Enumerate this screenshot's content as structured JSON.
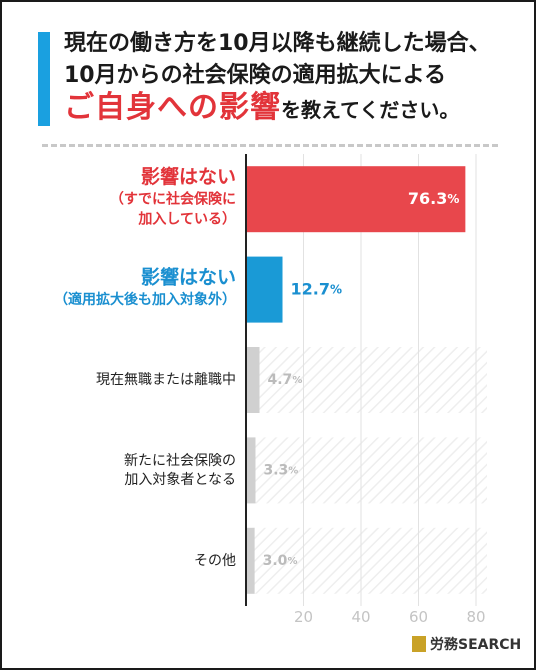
{
  "title": {
    "line1": "現在の働き方を10月以降も継続した場合、",
    "line2": "10月からの社会保険の適用拡大による",
    "line3_accent": "ご自身への影響",
    "line3_tail": "を教えてください。"
  },
  "chart_data": {
    "type": "bar",
    "orientation": "horizontal",
    "categories": [
      [
        "影響はない",
        "（すでに社会保険に",
        "加入している）"
      ],
      [
        "影響はない",
        "（適用拡大後も加入対象外）"
      ],
      [
        "現在無職または離職中"
      ],
      [
        "新たに社会保険の",
        "加入対象者となる"
      ],
      [
        "その他"
      ]
    ],
    "values": [
      76.3,
      12.7,
      4.7,
      3.3,
      3.0
    ],
    "value_labels": [
      "76.3%",
      "12.7%",
      "4.7%",
      "3.3%",
      "3.0%"
    ],
    "xlim": [
      0,
      80
    ],
    "xticks": [
      20,
      40,
      60,
      80
    ],
    "colors": [
      "#e8474c",
      "#1a9ad6",
      "#d0d0d0",
      "#d0d0d0",
      "#d0d0d0"
    ],
    "label_colors": [
      "#e2343a",
      "#1a8fd0",
      "#222222",
      "#222222",
      "#222222"
    ],
    "value_label_colors": [
      "#ffffff",
      "#1a8fd0",
      "#bbbbbb",
      "#bbbbbb",
      "#bbbbbb"
    ],
    "grid": true
  },
  "logo": {
    "text": "労務SEARCH"
  }
}
